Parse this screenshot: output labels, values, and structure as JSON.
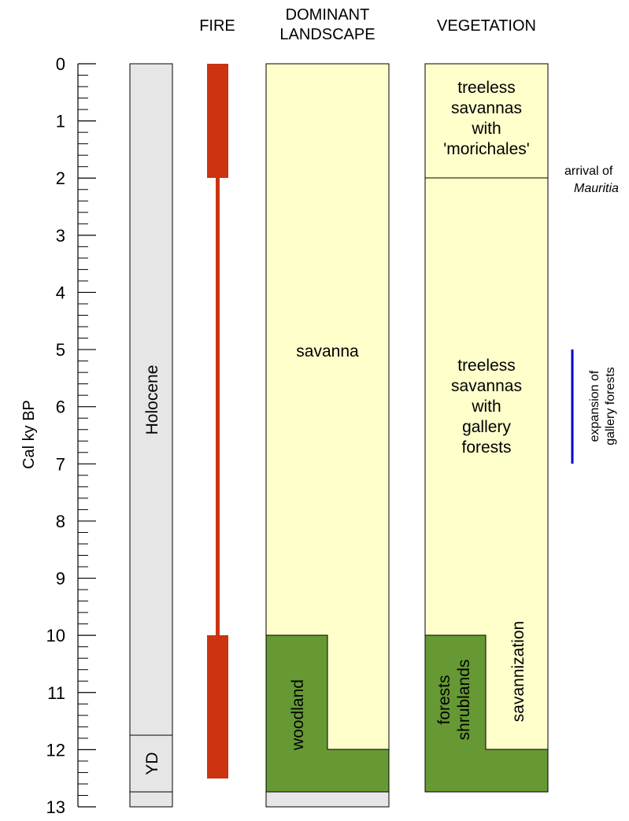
{
  "headers": {
    "fire": "FIRE",
    "landscape_line1": "DOMINANT",
    "landscape_line2": "LANDSCAPE",
    "vegetation": "VEGETATION"
  },
  "axis": {
    "label": "Cal ky BP",
    "ticks": [
      "0",
      "1",
      "2",
      "3",
      "4",
      "5",
      "6",
      "7",
      "8",
      "9",
      "10",
      "11",
      "12",
      "13"
    ]
  },
  "epochs": {
    "holocene": "Holocene",
    "yd": "YD"
  },
  "landscape": {
    "savanna": "savanna",
    "woodland": "woodland"
  },
  "vegetation": {
    "morichales": [
      "treeless",
      "savannas",
      "with",
      "'morichales'"
    ],
    "gallery": [
      "treeless",
      "savannas",
      "with",
      "gallery",
      "forests"
    ],
    "forests": "forests",
    "shrublands": "shrublands",
    "savannization": "savannization"
  },
  "annotations": {
    "arrival_line1": "arrival of",
    "arrival_line2": "Mauritia",
    "expansion_line1": "expansion of",
    "expansion_line2": "gallery forests"
  },
  "colors": {
    "savanna_fill": "#ffffcc",
    "woodland_fill": "#669933",
    "epoch_fill": "#e6e6e6",
    "fire_fill": "#cc3311",
    "expansion_bar": "#0000cc"
  }
}
